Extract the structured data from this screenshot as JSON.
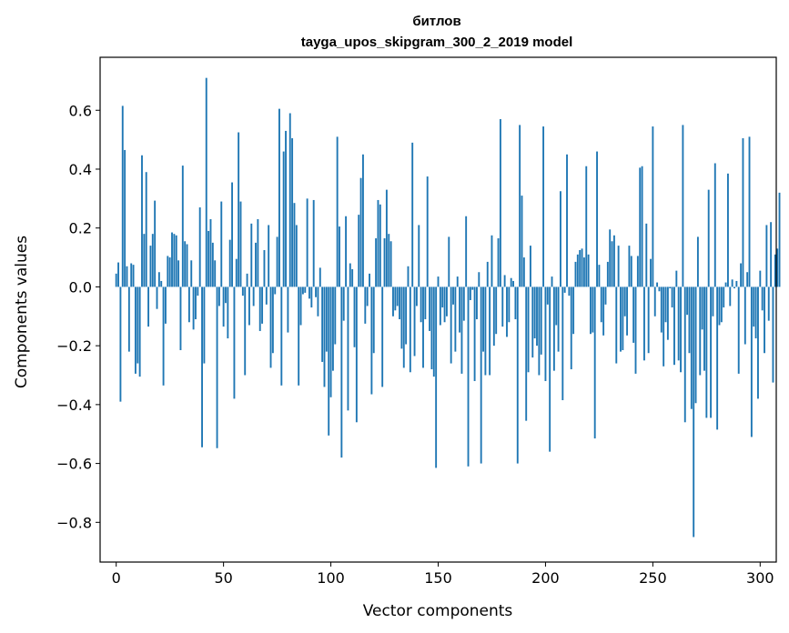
{
  "chart_data": {
    "type": "bar",
    "title": "битлов",
    "subtitle": "tayga_upos_skipgram_300_2_2019 model",
    "xlabel": "Vector components",
    "ylabel": "Components values",
    "xlim": [
      -7.5,
      307.5
    ],
    "ylim": [
      -0.935,
      0.78
    ],
    "xticks": [
      0,
      50,
      100,
      150,
      200,
      250,
      300
    ],
    "xtick_labels": [
      "0",
      "50",
      "100",
      "150",
      "200",
      "250",
      "300"
    ],
    "yticks": [
      -0.8,
      -0.6,
      -0.4,
      -0.2,
      0.0,
      0.2,
      0.4,
      0.6
    ],
    "ytick_labels": [
      "−0.8",
      "−0.6",
      "−0.4",
      "−0.2",
      "0.0",
      "0.2",
      "0.4",
      "0.6"
    ],
    "bar_color": "#1f77b4",
    "grid": false,
    "values": [
      0.045,
      0.083,
      -0.39,
      0.615,
      0.465,
      0.07,
      -0.22,
      0.08,
      0.075,
      -0.295,
      -0.26,
      -0.305,
      0.447,
      0.18,
      0.39,
      -0.135,
      0.14,
      0.18,
      0.293,
      -0.075,
      0.05,
      0.02,
      -0.335,
      -0.125,
      0.105,
      0.1,
      0.185,
      0.18,
      0.175,
      0.09,
      -0.215,
      0.412,
      0.155,
      0.145,
      -0.12,
      0.09,
      -0.145,
      -0.11,
      -0.03,
      0.27,
      -0.545,
      -0.26,
      0.71,
      0.19,
      0.23,
      0.15,
      0.09,
      -0.548,
      -0.065,
      0.29,
      -0.135,
      -0.055,
      -0.175,
      0.16,
      0.355,
      -0.38,
      0.095,
      0.525,
      0.29,
      -0.03,
      -0.3,
      0.045,
      -0.13,
      0.215,
      -0.065,
      0.15,
      0.23,
      -0.15,
      -0.125,
      0.125,
      -0.06,
      0.21,
      -0.275,
      -0.225,
      -0.025,
      0.17,
      0.605,
      -0.335,
      0.46,
      0.53,
      -0.155,
      0.59,
      0.505,
      0.285,
      0.21,
      -0.335,
      -0.13,
      -0.025,
      -0.02,
      0.3,
      -0.04,
      -0.07,
      0.295,
      -0.035,
      -0.1,
      0.065,
      -0.255,
      -0.34,
      -0.22,
      -0.505,
      -0.375,
      -0.285,
      -0.195,
      0.51,
      0.205,
      -0.58,
      -0.115,
      0.24,
      -0.42,
      0.08,
      0.06,
      -0.205,
      -0.46,
      0.245,
      0.37,
      0.45,
      -0.125,
      -0.065,
      0.045,
      -0.365,
      -0.225,
      0.165,
      0.295,
      0.28,
      -0.34,
      0.165,
      0.33,
      0.18,
      0.155,
      -0.1,
      -0.08,
      -0.065,
      -0.11,
      -0.21,
      -0.275,
      -0.195,
      0.07,
      -0.29,
      0.49,
      -0.235,
      -0.065,
      0.21,
      -0.12,
      -0.275,
      -0.11,
      0.375,
      -0.15,
      -0.28,
      -0.305,
      -0.615,
      0.035,
      -0.13,
      -0.07,
      -0.12,
      -0.1,
      0.17,
      -0.26,
      -0.06,
      -0.22,
      0.035,
      -0.155,
      -0.295,
      -0.115,
      0.24,
      -0.61,
      -0.045,
      -0.01,
      -0.32,
      -0.11,
      0.05,
      -0.6,
      -0.22,
      -0.3,
      0.085,
      -0.3,
      0.175,
      -0.2,
      -0.16,
      0.165,
      0.57,
      -0.135,
      0.04,
      -0.17,
      -0.12,
      0.03,
      0.02,
      -0.11,
      -0.6,
      0.55,
      0.31,
      0.1,
      -0.455,
      -0.29,
      0.14,
      -0.24,
      -0.175,
      -0.2,
      -0.3,
      -0.23,
      0.545,
      -0.32,
      -0.06,
      -0.56,
      0.035,
      -0.285,
      -0.13,
      -0.22,
      0.325,
      -0.385,
      -0.02,
      0.45,
      -0.03,
      -0.28,
      -0.16,
      0.085,
      0.11,
      0.125,
      0.13,
      0.1,
      0.41,
      0.11,
      -0.16,
      -0.155,
      -0.515,
      0.46,
      0.075,
      -0.12,
      -0.165,
      -0.06,
      0.085,
      0.195,
      0.155,
      0.175,
      -0.26,
      0.14,
      -0.22,
      -0.215,
      -0.1,
      -0.165,
      0.14,
      0.105,
      -0.19,
      -0.295,
      0.105,
      0.405,
      0.41,
      -0.25,
      0.215,
      -0.225,
      0.095,
      0.545,
      -0.1,
      0.015,
      -0.015,
      -0.155,
      -0.27,
      -0.12,
      -0.18,
      -0.005,
      -0.07,
      -0.265,
      0.055,
      -0.25,
      -0.29,
      0.55,
      -0.46,
      -0.095,
      -0.225,
      -0.415,
      -0.85,
      -0.395,
      0.17,
      -0.3,
      -0.145,
      -0.285,
      -0.445,
      0.33,
      -0.445,
      -0.1,
      0.42,
      -0.485,
      -0.13,
      -0.12,
      -0.07,
      0.015,
      0.385,
      -0.065,
      0.025,
      -0.005,
      0.02,
      -0.295,
      0.08,
      0.505,
      -0.195,
      0.05,
      0.51,
      -0.51,
      -0.135,
      -0.175,
      -0.38,
      0.055,
      -0.08,
      -0.225,
      0.21,
      -0.115,
      0.22,
      -0.325,
      0.11,
      0.13,
      0.32
    ]
  }
}
